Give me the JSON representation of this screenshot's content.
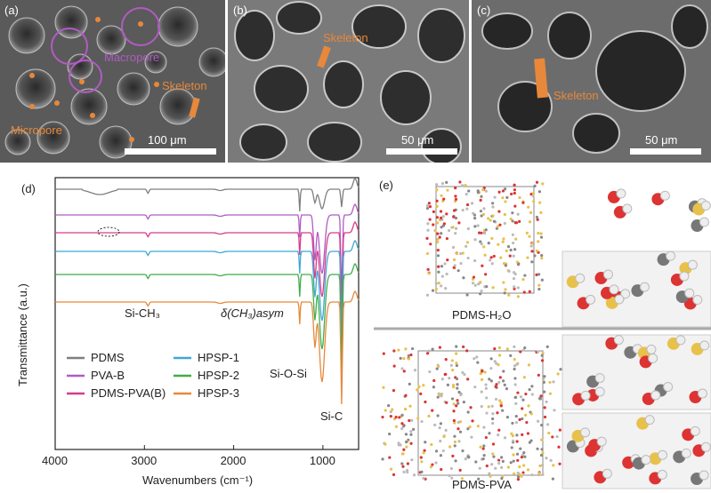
{
  "panels": {
    "a": {
      "label": "(a)",
      "macropore": "Macropore",
      "skeleton": "Skeleton",
      "micropore": "Micropore",
      "scale": "100 μm"
    },
    "b": {
      "label": "(b)",
      "skeleton": "Skeleton",
      "scale": "50 μm"
    },
    "c": {
      "label": "(c)",
      "skeleton": "Skeleton",
      "scale": "50 μm"
    },
    "d": {
      "label": "(d)"
    },
    "e": {
      "label": "(e)",
      "top_label": "PDMS-H₂O",
      "bottom_label": "PDMS-PVA"
    }
  },
  "chart_data": {
    "type": "line",
    "xlabel": "Wavenumbers (cm⁻¹)",
    "ylabel": "Transmittance (a.u.)",
    "xlim": [
      4000,
      600
    ],
    "xticks": [
      4000,
      3000,
      2000,
      1000
    ],
    "series": [
      {
        "name": "PDMS",
        "color": "#7f7f7f",
        "offset": 0
      },
      {
        "name": "PVA-B",
        "color": "#b15bc4",
        "offset": 1
      },
      {
        "name": "PDMS-PVA(B)",
        "color": "#d63c8c",
        "offset": 2
      },
      {
        "name": "HPSP-1",
        "color": "#3fa7d6",
        "offset": 3
      },
      {
        "name": "HPSP-2",
        "color": "#3fae49",
        "offset": 4
      },
      {
        "name": "HPSP-3",
        "color": "#e8883a",
        "offset": 5
      }
    ],
    "annotations": [
      "Si-CH₃",
      "δ(CH₃)asym",
      "Si-O-Si",
      "Si-C"
    ]
  }
}
